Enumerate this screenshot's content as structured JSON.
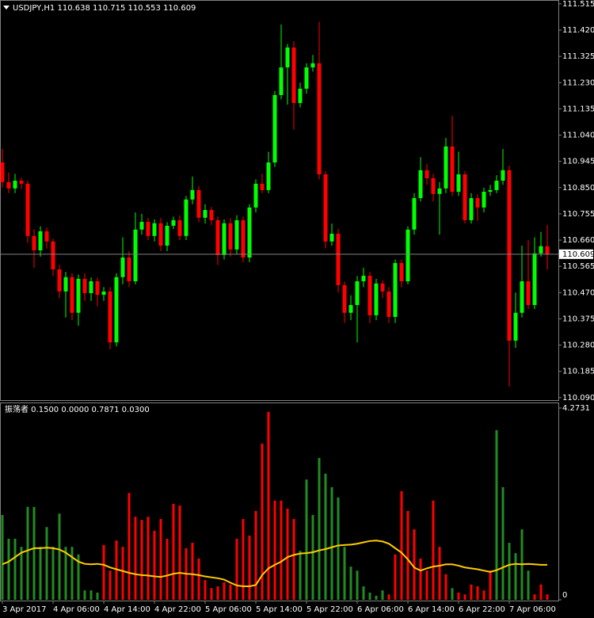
{
  "chart_data": [
    {
      "type": "candlestick",
      "title": "USDJPY,H1  110.638 110.715 110.553 110.609",
      "categories": [
        "3 Apr 2017",
        null,
        null,
        null,
        null,
        null,
        null,
        null,
        "4 Apr 06:00",
        null,
        null,
        null,
        null,
        null,
        null,
        null,
        "4 Apr 14:00",
        null,
        null,
        null,
        null,
        null,
        null,
        null,
        "4 Apr 22:00",
        null,
        null,
        null,
        null,
        null,
        null,
        null,
        "5 Apr 06:00",
        null,
        null,
        null,
        null,
        null,
        null,
        null,
        "5 Apr 14:00",
        null,
        null,
        null,
        null,
        null,
        null,
        null,
        "5 Apr 22:00",
        null,
        null,
        null,
        null,
        null,
        null,
        null,
        "6 Apr 06:00",
        null,
        null,
        null,
        null,
        null,
        null,
        null,
        "6 Apr 14:00",
        null,
        null,
        null,
        null,
        null,
        null,
        null,
        "6 Apr 22:00",
        null,
        null,
        null,
        null,
        null,
        null,
        null,
        "7 Apr 06:00",
        null,
        null,
        null,
        null,
        null,
        null
      ],
      "open": [
        110.941,
        110.87,
        110.847,
        110.875,
        110.864,
        110.675,
        110.623,
        110.692,
        110.655,
        110.554,
        110.474,
        110.526,
        110.397,
        110.52,
        110.468,
        110.511,
        110.462,
        110.474,
        110.29,
        110.526,
        110.597,
        110.511,
        110.698,
        110.726,
        110.675,
        110.721,
        110.64,
        110.712,
        110.732,
        110.675,
        110.807,
        110.841,
        110.741,
        110.769,
        110.732,
        110.606,
        110.721,
        110.626,
        110.732,
        110.597,
        110.778,
        110.864,
        110.841,
        110.941,
        111.185,
        111.285,
        111.357,
        111.156,
        111.208,
        111.285,
        111.3,
        110.898,
        110.655,
        110.683,
        110.497,
        110.397,
        110.425,
        110.511,
        110.531,
        110.388,
        110.503,
        110.474,
        110.382,
        110.577,
        110.511,
        110.698,
        110.812,
        110.913,
        110.884,
        110.827,
        110.847,
        110.999,
        110.835,
        110.898,
        110.732,
        110.812,
        110.778,
        110.835,
        110.841,
        110.875,
        110.913,
        110.296,
        110.397,
        110.511,
        110.425,
        110.612,
        110.638
      ],
      "high": [
        110.99,
        110.905,
        110.9,
        110.885,
        110.875,
        110.7,
        110.71,
        110.705,
        110.665,
        110.57,
        110.545,
        110.54,
        110.535,
        110.54,
        110.525,
        110.525,
        110.49,
        110.49,
        110.54,
        110.67,
        110.62,
        110.76,
        110.755,
        110.74,
        110.735,
        110.74,
        110.725,
        110.745,
        110.75,
        110.82,
        110.89,
        110.855,
        110.79,
        110.78,
        110.745,
        110.735,
        110.74,
        110.75,
        110.745,
        110.79,
        110.88,
        110.9,
        110.98,
        111.2,
        111.44,
        111.37,
        111.38,
        111.23,
        111.3,
        111.33,
        111.45,
        110.91,
        110.72,
        110.7,
        110.51,
        110.46,
        110.53,
        110.56,
        110.545,
        110.52,
        110.515,
        110.49,
        110.59,
        110.59,
        110.71,
        110.83,
        110.96,
        110.935,
        110.9,
        110.87,
        111.03,
        111.11,
        110.98,
        110.91,
        110.83,
        110.825,
        110.85,
        110.86,
        110.895,
        110.99,
        110.93,
        110.47,
        110.64,
        110.66,
        110.67,
        110.69,
        110.715
      ],
      "low": [
        110.85,
        110.83,
        110.83,
        110.845,
        110.65,
        110.56,
        110.6,
        110.63,
        110.53,
        110.45,
        110.38,
        110.37,
        110.35,
        110.44,
        110.44,
        110.42,
        110.44,
        110.265,
        110.275,
        110.5,
        110.49,
        110.5,
        110.68,
        110.66,
        110.655,
        110.62,
        110.62,
        110.7,
        110.66,
        110.66,
        110.79,
        110.725,
        110.72,
        110.715,
        110.57,
        110.59,
        110.6,
        110.61,
        110.58,
        110.58,
        110.76,
        110.83,
        110.83,
        110.925,
        111.17,
        111.15,
        111.06,
        111.14,
        111.19,
        111.27,
        110.88,
        110.63,
        110.64,
        110.47,
        110.36,
        110.37,
        110.29,
        110.49,
        110.36,
        110.37,
        110.45,
        110.36,
        110.36,
        110.49,
        110.5,
        110.68,
        110.8,
        110.86,
        110.8,
        110.68,
        110.83,
        110.82,
        110.82,
        110.72,
        110.72,
        110.73,
        110.76,
        110.82,
        110.83,
        110.86,
        110.13,
        110.27,
        110.38,
        110.41,
        110.41,
        110.6,
        110.553
      ],
      "close": [
        110.87,
        110.847,
        110.875,
        110.864,
        110.675,
        110.623,
        110.692,
        110.655,
        110.554,
        110.474,
        110.526,
        110.397,
        110.52,
        110.468,
        110.511,
        110.462,
        110.474,
        110.29,
        110.526,
        110.597,
        110.511,
        110.698,
        110.726,
        110.675,
        110.721,
        110.64,
        110.712,
        110.732,
        110.675,
        110.807,
        110.841,
        110.741,
        110.769,
        110.732,
        110.606,
        110.721,
        110.626,
        110.732,
        110.597,
        110.778,
        110.864,
        110.841,
        110.941,
        111.185,
        111.285,
        111.357,
        111.156,
        111.208,
        111.285,
        111.3,
        110.898,
        110.655,
        110.683,
        110.497,
        110.397,
        110.425,
        110.511,
        110.531,
        110.388,
        110.503,
        110.474,
        110.382,
        110.577,
        110.511,
        110.698,
        110.812,
        110.913,
        110.884,
        110.827,
        110.847,
        110.999,
        110.835,
        110.898,
        110.732,
        110.812,
        110.778,
        110.835,
        110.841,
        110.875,
        110.913,
        110.296,
        110.397,
        110.511,
        110.425,
        110.612,
        110.638,
        110.609
      ],
      "up_color": "#00ff00",
      "down_color": "#ff0000",
      "ylim": [
        110.078,
        111.529
      ],
      "yticks": [
        111.515,
        {
          "value": 111.42,
          "label": "111.420"
        },
        111.325,
        {
          "value": 111.23,
          "label": "111.230"
        },
        111.135,
        {
          "value": 111.04,
          "label": "111.040"
        },
        110.945,
        {
          "value": 110.85,
          "label": "110.850"
        },
        110.755,
        {
          "value": 110.66,
          "label": "110.660"
        },
        110.565,
        {
          "value": 110.47,
          "label": "110.470"
        },
        110.375,
        {
          "value": 110.28,
          "label": "110.280"
        },
        110.185,
        {
          "value": 110.09,
          "label": "110.090"
        }
      ],
      "price_line": 110.609
    },
    {
      "type": "bar",
      "title": "振荡者 0.1500 0.0000 0.7871 0.0300",
      "values": [
        1.89,
        1.36,
        1.36,
        1.18,
        2.07,
        2.07,
        1.18,
        1.62,
        1.18,
        1.92,
        1.18,
        1.18,
        1.01,
        0.21,
        0.21,
        0.16,
        1.22,
        0.65,
        1.32,
        1.18,
        2.38,
        1.85,
        1.78,
        1.85,
        1.54,
        1.8,
        1.36,
        2.14,
        2.1,
        1.15,
        1.27,
        0.92,
        0.44,
        0.26,
        0.3,
        0.39,
        0.34,
        1.36,
        1.8,
        1.43,
        1.98,
        3.48,
        4.19,
        2.21,
        2.21,
        2.03,
        1.8,
        1.09,
        2.68,
        1.89,
        3.16,
        2.81,
        2.51,
        2.28,
        1.18,
        0.74,
        0.65,
        0.3,
        0.16,
        0.09,
        0.21,
        0.12,
        1.01,
        2.42,
        1.98,
        1.57,
        0.92,
        0.65,
        2.21,
        1.18,
        0.57,
        0.26,
        0.16,
        0.12,
        0.34,
        0.3,
        0.21,
        0.65,
        3.78,
        2.51,
        1.27,
        1.04,
        1.57,
        0.65,
        0.12,
        0.34,
        0.12
      ],
      "colors": [
        "#228b22",
        "#228b22",
        "#228b22",
        "#228b22",
        "#228b22",
        "#228b22",
        "#228b22",
        "#228b22",
        "#228b22",
        "#228b22",
        "#228b22",
        "#228b22",
        "#228b22",
        "#228b22",
        "#228b22",
        "#228b22",
        "#ff0000",
        "#ff0000",
        "#ff0000",
        "#ff0000",
        "#ff0000",
        "#ff0000",
        "#ff0000",
        "#ff0000",
        "#ff0000",
        "#ff0000",
        "#ff0000",
        "#ff0000",
        "#ff0000",
        "#ff0000",
        "#ff0000",
        "#ff0000",
        "#ff0000",
        "#ff0000",
        "#ff0000",
        "#ff0000",
        "#ff0000",
        "#ff0000",
        "#ff0000",
        "#ff0000",
        "#ff0000",
        "#ff0000",
        "#ff0000",
        "#ff0000",
        "#ff0000",
        "#ff0000",
        "#ff0000",
        "#228b22",
        "#228b22",
        "#228b22",
        "#228b22",
        "#228b22",
        "#228b22",
        "#228b22",
        "#228b22",
        "#228b22",
        "#228b22",
        "#228b22",
        "#228b22",
        "#228b22",
        "#228b22",
        "#ff0000",
        "#ff0000",
        "#ff0000",
        "#ff0000",
        "#ff0000",
        "#ff0000",
        "#ff0000",
        "#ff0000",
        "#ff0000",
        "#ff0000",
        "#228b22",
        "#ff0000",
        "#ff0000",
        "#ff0000",
        "#ff0000",
        "#ff0000",
        "#ff0000",
        "#228b22",
        "#228b22",
        "#228b22",
        "#228b22",
        "#228b22",
        "#228b22",
        "#ff0000",
        "#ff0000",
        "#ff0000"
      ],
      "line_values": [
        0.79,
        0.85,
        0.95,
        1.05,
        1.1,
        1.15,
        1.15,
        1.16,
        1.15,
        1.12,
        1.05,
        0.95,
        0.85,
        0.8,
        0.79,
        0.8,
        0.78,
        0.72,
        0.68,
        0.64,
        0.6,
        0.57,
        0.55,
        0.54,
        0.52,
        0.51,
        0.54,
        0.58,
        0.6,
        0.58,
        0.57,
        0.55,
        0.52,
        0.5,
        0.48,
        0.45,
        0.38,
        0.32,
        0.3,
        0.3,
        0.33,
        0.55,
        0.7,
        0.78,
        0.85,
        0.95,
        1.0,
        1.03,
        1.04,
        1.06,
        1.1,
        1.13,
        1.17,
        1.21,
        1.22,
        1.23,
        1.25,
        1.28,
        1.31,
        1.32,
        1.3,
        1.25,
        1.15,
        1.05,
        0.9,
        0.72,
        0.65,
        0.7,
        0.74,
        0.76,
        0.79,
        0.79,
        0.76,
        0.72,
        0.7,
        0.68,
        0.65,
        0.62,
        0.66,
        0.72,
        0.78,
        0.8,
        0.79,
        0.8,
        0.79,
        0.78,
        0.78
      ],
      "line_color": "#ffcc00",
      "ylim": [
        0,
        4.2731
      ],
      "yticks": [
        0,
        4.2731
      ]
    }
  ]
}
